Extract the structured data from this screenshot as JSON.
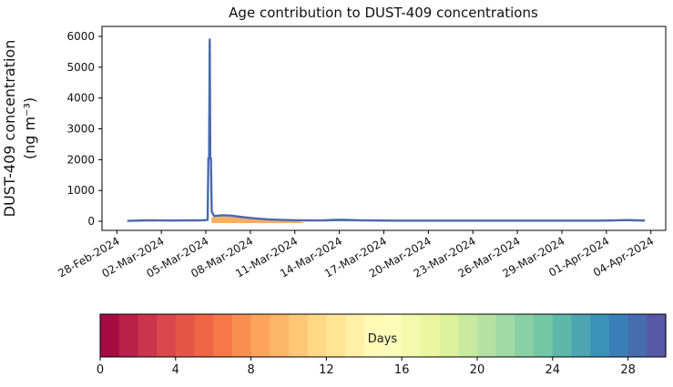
{
  "figure": {
    "title": "Age contribution to DUST-409 concentrations"
  },
  "chart_data": {
    "type": "area",
    "title": "Age contribution to DUST-409 concentrations",
    "ylabel_line1": "DUST-409 concentration",
    "ylabel_line2": "(ng m⁻³)",
    "grid": false,
    "legend": "colorbar",
    "x_axis": {
      "tick_labels": [
        "28-Feb-2024",
        "02-Mar-2024",
        "05-Mar-2024",
        "08-Mar-2024",
        "11-Mar-2024",
        "14-Mar-2024",
        "17-Mar-2024",
        "20-Mar-2024",
        "23-Mar-2024",
        "26-Mar-2024",
        "29-Mar-2024",
        "01-Apr-2024",
        "04-Apr-2024"
      ],
      "tick_days": [
        1,
        4,
        7,
        10,
        13,
        16,
        19,
        22,
        25,
        28,
        31,
        34,
        37
      ],
      "range_days": [
        0,
        38
      ],
      "epoch_label": "27-Feb-2024",
      "rotation_deg": 30
    },
    "y_axis": {
      "tick_values": [
        0,
        1000,
        2000,
        3000,
        4000,
        5000,
        6000
      ],
      "range": [
        -295,
        6325
      ]
    },
    "total_line": {
      "name": "total-concentration",
      "color": "#4a69ae",
      "width": 2.4,
      "points": [
        [
          1.7,
          12
        ],
        [
          2.3,
          22
        ],
        [
          3.0,
          30
        ],
        [
          3.8,
          26
        ],
        [
          4.6,
          24
        ],
        [
          5.5,
          26
        ],
        [
          6.3,
          30
        ],
        [
          6.9,
          36
        ],
        [
          7.12,
          48
        ],
        [
          7.17,
          2040
        ],
        [
          7.22,
          2040
        ],
        [
          7.26,
          5900
        ],
        [
          7.3,
          2040
        ],
        [
          7.34,
          2040
        ],
        [
          7.4,
          320
        ],
        [
          7.55,
          170
        ],
        [
          8.1,
          195
        ],
        [
          8.7,
          185
        ],
        [
          9.5,
          135
        ],
        [
          10.3,
          95
        ],
        [
          11.2,
          62
        ],
        [
          12.2,
          42
        ],
        [
          13.2,
          32
        ],
        [
          14.0,
          26
        ],
        [
          14.8,
          28
        ],
        [
          15.5,
          36
        ],
        [
          16.3,
          40
        ],
        [
          17.2,
          34
        ],
        [
          18.0,
          28
        ],
        [
          18.8,
          24
        ],
        [
          20.0,
          22
        ],
        [
          22.0,
          21
        ],
        [
          24.0,
          21
        ],
        [
          26.0,
          21
        ],
        [
          28.0,
          21
        ],
        [
          30.0,
          21
        ],
        [
          32.0,
          21
        ],
        [
          33.5,
          22
        ],
        [
          34.5,
          26
        ],
        [
          35.35,
          38
        ],
        [
          36.0,
          30
        ],
        [
          36.6,
          24
        ]
      ]
    },
    "layers": [
      {
        "name": "age-6-10-days-band",
        "color": "#fdae61",
        "upper": [
          [
            7.38,
            120
          ],
          [
            8.1,
            155
          ],
          [
            8.7,
            150
          ],
          [
            9.5,
            112
          ],
          [
            10.3,
            78
          ],
          [
            11.2,
            45
          ],
          [
            12.2,
            22
          ],
          [
            13.2,
            8
          ],
          [
            13.7,
            -60
          ]
        ],
        "lower": [
          [
            13.7,
            -60
          ],
          [
            7.38,
            -60
          ]
        ]
      },
      {
        "name": "age-15-19-days-band",
        "color": "#74b6b4",
        "upper": [
          [
            14.6,
            40
          ],
          [
            15.5,
            85
          ],
          [
            16.2,
            90
          ],
          [
            17.0,
            70
          ],
          [
            17.8,
            45
          ],
          [
            18.5,
            30
          ]
        ],
        "lower": [
          [
            18.5,
            20
          ],
          [
            17.8,
            26
          ],
          [
            17.0,
            30
          ],
          [
            15.5,
            30
          ],
          [
            14.6,
            22
          ]
        ]
      },
      {
        "name": "aged-early-april-sliver",
        "color": "#79bfae",
        "upper": [
          [
            34.8,
            30
          ],
          [
            35.3,
            58
          ],
          [
            35.9,
            30
          ]
        ],
        "lower": [
          [
            35.9,
            20
          ],
          [
            34.8,
            20
          ]
        ]
      }
    ],
    "colorbar": {
      "label": "Days",
      "tick_values": [
        0,
        4,
        8,
        12,
        16,
        20,
        24,
        28
      ],
      "range": [
        0,
        30
      ],
      "segments": 30,
      "colormap": "Spectral",
      "anchor_colors": [
        "#9e0142",
        "#d53e4f",
        "#f46d43",
        "#fdae61",
        "#fee08b",
        "#ffffbf",
        "#e6f598",
        "#abdda4",
        "#66c2a5",
        "#3288bd",
        "#5e4fa2"
      ]
    }
  }
}
